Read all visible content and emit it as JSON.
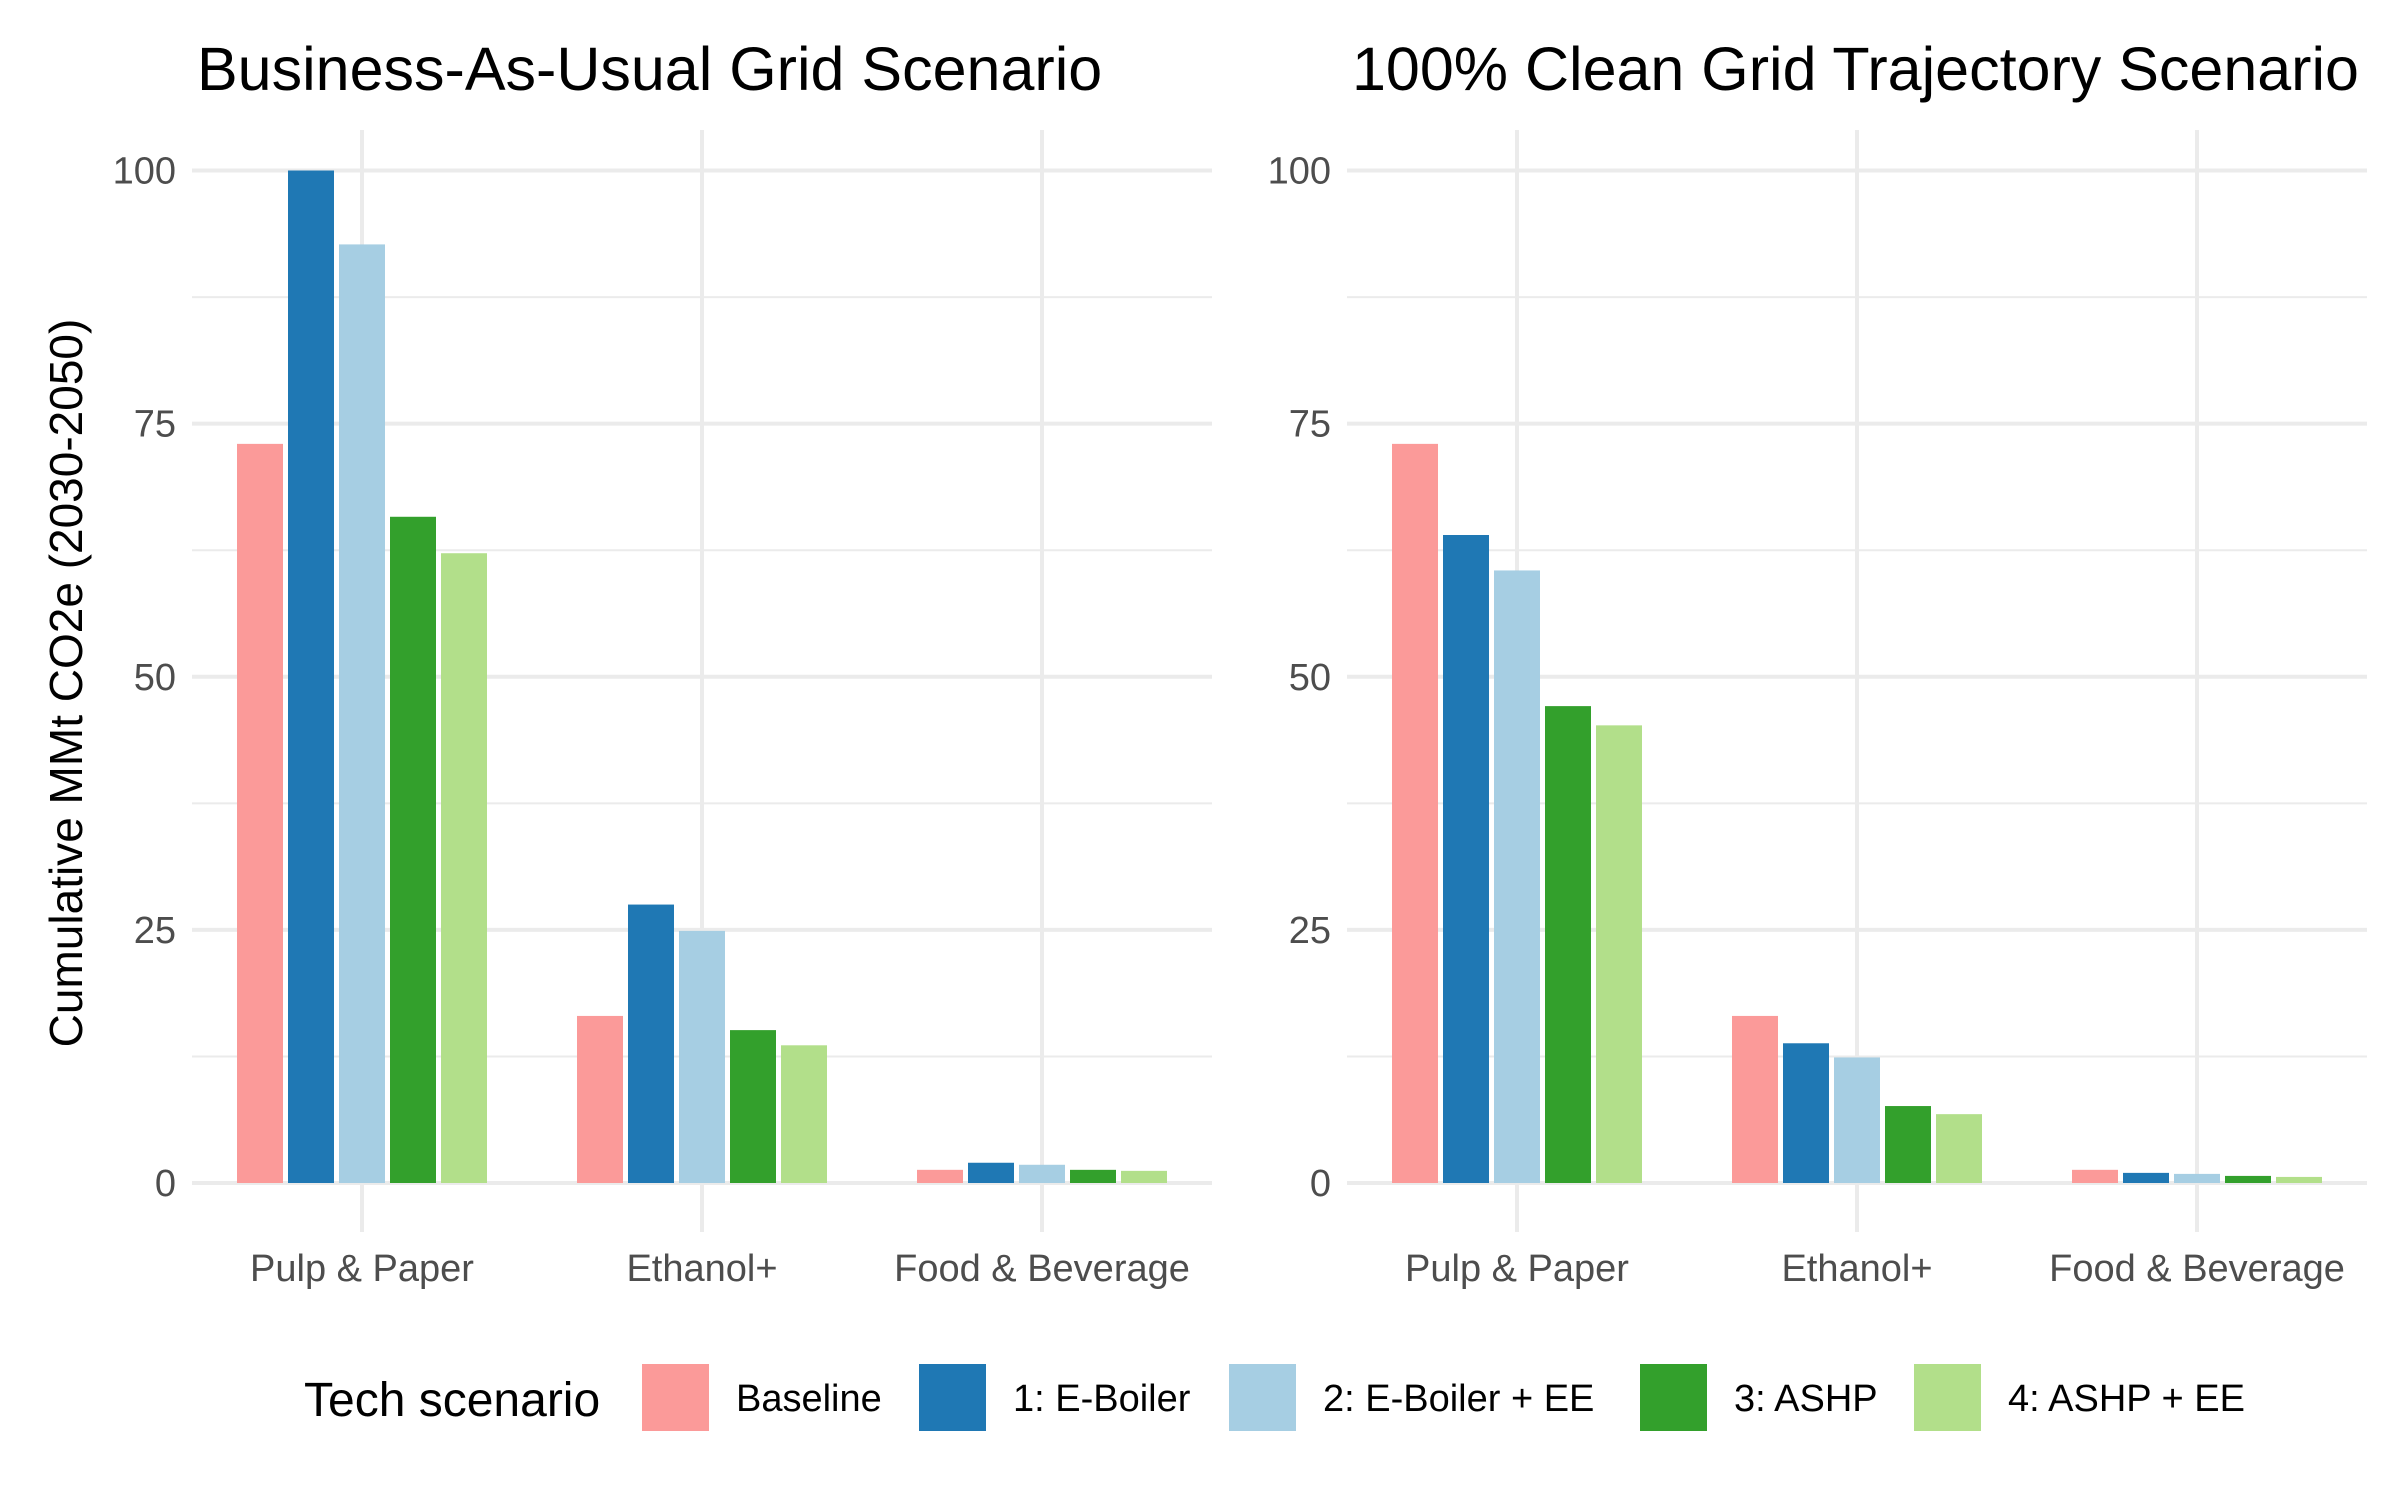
{
  "chart_data": {
    "type": "bar",
    "ylabel": "Cumulative MMt CO2e (2030-2050)",
    "xlabel": "",
    "ylim": [
      0,
      104
    ],
    "yticks": [
      0,
      25,
      50,
      75,
      100
    ],
    "grid": true,
    "legend": {
      "title": "Tech scenario",
      "placement": "bottom"
    },
    "categories": [
      "Pulp & Paper",
      "Ethanol+",
      "Food & Beverage"
    ],
    "series_info": [
      {
        "name": "Baseline",
        "color": "#fb9a99"
      },
      {
        "name": "1: E-Boiler",
        "color": "#1f78b4"
      },
      {
        "name": "2: E-Boiler + EE",
        "color": "#a6cee3"
      },
      {
        "name": "3: ASHP",
        "color": "#33a02c"
      },
      {
        "name": "4: ASHP + EE",
        "color": "#b2df8a"
      }
    ],
    "panels": [
      {
        "title": "Business-As-Usual Grid Scenario",
        "series": [
          {
            "name": "Baseline",
            "values": [
              73.0,
              16.5,
              1.3
            ]
          },
          {
            "name": "1: E-Boiler",
            "values": [
              100.0,
              27.5,
              2.0
            ]
          },
          {
            "name": "2: E-Boiler + EE",
            "values": [
              92.7,
              24.9,
              1.8
            ]
          },
          {
            "name": "3: ASHP",
            "values": [
              65.8,
              15.1,
              1.3
            ]
          },
          {
            "name": "4: ASHP + EE",
            "values": [
              62.2,
              13.6,
              1.2
            ]
          }
        ]
      },
      {
        "title": "100% Clean Grid Trajectory Scenario",
        "series": [
          {
            "name": "Baseline",
            "values": [
              73.0,
              16.5,
              1.3
            ]
          },
          {
            "name": "1: E-Boiler",
            "values": [
              64.0,
              13.8,
              1.0
            ]
          },
          {
            "name": "2: E-Boiler + EE",
            "values": [
              60.5,
              12.4,
              0.9
            ]
          },
          {
            "name": "3: ASHP",
            "values": [
              47.1,
              7.6,
              0.7
            ]
          },
          {
            "name": "4: ASHP + EE",
            "values": [
              45.2,
              6.8,
              0.6
            ]
          }
        ]
      }
    ]
  }
}
